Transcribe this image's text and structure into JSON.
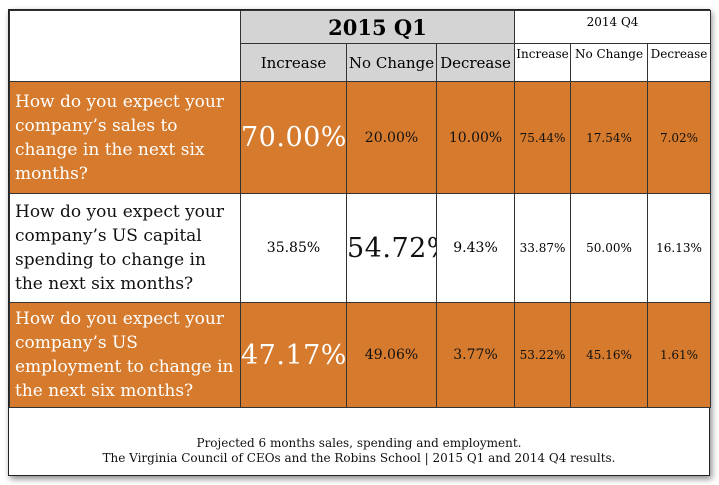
{
  "chart_data": {
    "type": "table",
    "title": "",
    "periods": [
      {
        "label": "2015 Q1",
        "columns": [
          "Increase",
          "No Change",
          "Decrease"
        ]
      },
      {
        "label": "2014 Q4",
        "columns": [
          "Increase",
          "No Change",
          "Decrease"
        ]
      }
    ],
    "rows": [
      {
        "question": "How do you expect your company’s sales to change in the next six months?",
        "q1": [
          "70.00%",
          "20.00%",
          "10.00%"
        ],
        "q4": [
          "75.44%",
          "17.54%",
          "7.02%"
        ],
        "highlight": 0
      },
      {
        "question": "How do you expect your company’s US capital spending to change in the next six months?",
        "q1": [
          "35.85%",
          "54.72%",
          "9.43%"
        ],
        "q4": [
          "33.87%",
          "50.00%",
          "16.13%"
        ],
        "highlight": 1
      },
      {
        "question": "How do you expect your company’s US employment to change in the next six months?",
        "q1": [
          "47.17%",
          "49.06%",
          "3.77%"
        ],
        "q4": [
          "53.22%",
          "45.16%",
          "1.61%"
        ],
        "highlight": 0
      }
    ],
    "caption": [
      "Projected 6 months sales, spending and employment.",
      "The Virginia Council of CEOs and the Robins School | 2015 Q1 and 2014 Q4 results."
    ]
  },
  "colors": {
    "orange": "#d67b2e",
    "header_gray": "#d4d4d4"
  }
}
